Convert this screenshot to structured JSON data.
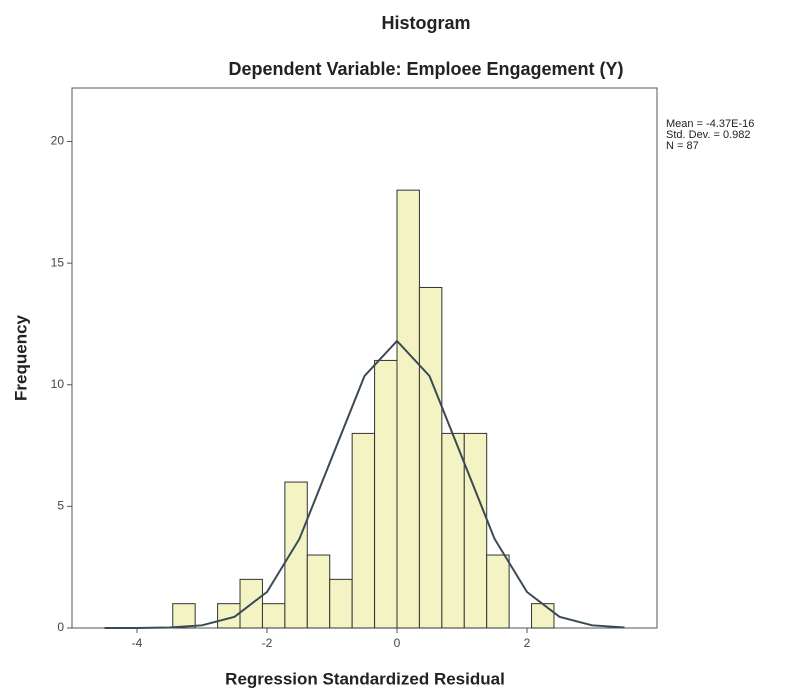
{
  "chart_data": {
    "type": "histogram",
    "title": "Histogram",
    "subtitle": "Dependent Variable: Emploee Engagement (Y)",
    "x_label": "Regression Standardized Residual",
    "y_label": "Frequency",
    "annotations": [
      "Mean = -4.37E-16",
      "Std. Dev. = 0.982",
      "N = 87"
    ],
    "bins": [
      -3.45,
      -3.105,
      -2.76,
      -2.415,
      -2.07,
      -1.725,
      -1.38,
      -1.035,
      -0.69,
      -0.345,
      0,
      0.345,
      0.69,
      1.035,
      1.38,
      1.725,
      2.07,
      2.415
    ],
    "values": [
      1,
      0,
      1,
      2,
      1,
      6,
      3,
      2,
      8,
      11,
      18,
      14,
      8,
      8,
      3,
      0,
      1
    ],
    "color": "#f3f3c4",
    "edge_color": "#333333",
    "curve": {
      "x": [
        -4.5,
        -4,
        -3.5,
        -3,
        -2.5,
        -2,
        -1.5,
        -1,
        -0.5,
        0,
        0.5,
        1,
        1.5,
        2,
        2.5,
        3,
        3.5
      ],
      "y": [
        0,
        0,
        0.02,
        0.11,
        0.46,
        1.48,
        3.67,
        7.02,
        10.36,
        11.8,
        10.36,
        7.02,
        3.67,
        1.48,
        0.46,
        0.11,
        0.02
      ],
      "color": "#3a4a55"
    },
    "xlim": [
      -5,
      4
    ],
    "ylim": [
      0,
      22.2
    ],
    "xticks": [
      -4,
      -2,
      0,
      2
    ],
    "yticks": [
      0,
      5,
      10,
      15,
      20
    ]
  }
}
